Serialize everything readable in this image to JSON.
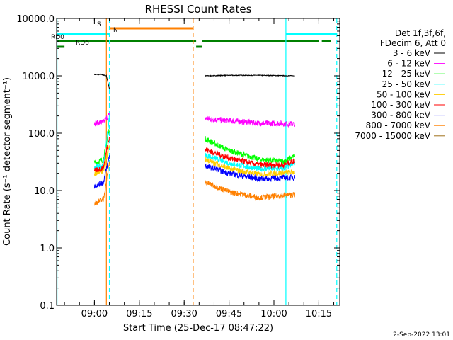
{
  "chart_data": {
    "type": "line",
    "title": "RHESSI Count Rates",
    "xlabel": "Start Time (25-Dec-17 08:47:22)",
    "ylabel": "Count Rate (s⁻¹ detector segment⁻¹)",
    "y_scale": "log",
    "ylim": [
      0.1,
      10000
    ],
    "xlim": [
      "08:47:22",
      "10:22:00"
    ],
    "x_ticks": [
      "09:00",
      "09:15",
      "09:30",
      "09:45",
      "10:00",
      "10:15"
    ],
    "y_ticks": [
      "0.1",
      "1.0",
      "10.0",
      "100.0",
      "1000.0",
      "10000.0"
    ],
    "legend_header": [
      "Det 1f,3f,6f,",
      "FDecim 6, Att 0"
    ],
    "series": [
      {
        "name": "3 - 6 keV",
        "color": "#000000",
        "segments": [
          {
            "x": [
              "09:00",
              "09:02",
              "09:04",
              "09:05"
            ],
            "y": [
              1050,
              1060,
              1000,
              600
            ]
          },
          {
            "x": [
              "09:37",
              "09:45",
              "09:55",
              "10:07"
            ],
            "y": [
              1000,
              1020,
              1020,
              1000
            ]
          }
        ]
      },
      {
        "name": "6 - 12 keV",
        "color": "#ff00ff",
        "segments": [
          {
            "x": [
              "09:00",
              "09:03",
              "09:05"
            ],
            "y": [
              150,
              155,
              210
            ]
          },
          {
            "x": [
              "09:37",
              "09:45",
              "09:55",
              "10:07"
            ],
            "y": [
              180,
              165,
              150,
              145
            ]
          }
        ]
      },
      {
        "name": "12 - 25 keV",
        "color": "#00ff00",
        "segments": [
          {
            "x": [
              "09:00",
              "09:03",
              "09:05"
            ],
            "y": [
              30,
              35,
              120
            ]
          },
          {
            "x": [
              "09:37",
              "09:45",
              "09:55",
              "10:03",
              "10:07"
            ],
            "y": [
              80,
              50,
              35,
              32,
              40
            ]
          }
        ]
      },
      {
        "name": "25 - 50 keV",
        "color": "#00ffff",
        "segments": [
          {
            "x": [
              "09:00",
              "09:03",
              "09:05"
            ],
            "y": [
              25,
              28,
              190
            ]
          },
          {
            "x": [
              "09:37",
              "09:45",
              "09:55",
              "10:03",
              "10:07"
            ],
            "y": [
              42,
              30,
              24,
              24,
              30
            ]
          }
        ]
      },
      {
        "name": "50 - 100 keV",
        "color": "#ffcc00",
        "segments": [
          {
            "x": [
              "09:00",
              "09:03",
              "09:05"
            ],
            "y": [
              20,
              22,
              60
            ]
          },
          {
            "x": [
              "09:37",
              "09:45",
              "09:55",
              "10:07"
            ],
            "y": [
              35,
              24,
              19,
              21
            ]
          }
        ]
      },
      {
        "name": "100 - 300 keV",
        "color": "#ff0000",
        "segments": [
          {
            "x": [
              "09:00",
              "09:03",
              "09:05"
            ],
            "y": [
              22,
              25,
              90
            ]
          },
          {
            "x": [
              "09:37",
              "09:45",
              "09:55",
              "10:03",
              "10:07"
            ],
            "y": [
              52,
              37,
              28,
              28,
              33
            ]
          }
        ]
      },
      {
        "name": "300 - 800 keV",
        "color": "#0000ff",
        "segments": [
          {
            "x": [
              "09:00",
              "09:03",
              "09:05"
            ],
            "y": [
              12,
              14,
              40
            ]
          },
          {
            "x": [
              "09:37",
              "09:45",
              "09:55",
              "10:07"
            ],
            "y": [
              27,
              20,
              16,
              17
            ]
          }
        ]
      },
      {
        "name": "800 - 7000 keV",
        "color": "#ff8000",
        "segments": [
          {
            "x": [
              "09:00",
              "09:03",
              "09:05"
            ],
            "y": [
              6,
              7,
              30
            ]
          },
          {
            "x": [
              "09:37",
              "09:45",
              "09:55",
              "10:07"
            ],
            "y": [
              14,
              9.5,
              7.5,
              8.5
            ]
          }
        ]
      },
      {
        "name": "7000 - 15000 keV",
        "color": "#a0701a",
        "segments": []
      }
    ],
    "flag_bars": [
      {
        "label": "S",
        "color": "#ff8000",
        "segments": [
          [
            "09:05",
            "09:33"
          ]
        ]
      },
      {
        "label": "N",
        "color": "#00ffff",
        "segments": [
          [
            "08:47:22",
            "09:05"
          ],
          [
            "10:04",
            "10:21"
          ]
        ]
      },
      {
        "label": "RD0",
        "color": "#008000",
        "segments": [
          [
            "08:47:22",
            "09:34"
          ],
          [
            "09:36",
            "10:15"
          ],
          [
            "10:16",
            "10:19"
          ]
        ]
      },
      {
        "label": "RD6",
        "color": "#008000",
        "segments": [
          [
            "08:47:22",
            "08:50"
          ],
          [
            "09:34",
            "09:36"
          ]
        ]
      }
    ],
    "vertical_lines": [
      {
        "time": "08:47:30",
        "color": "#00ffff",
        "style": "solid"
      },
      {
        "time": "09:04",
        "color": "#ff8000",
        "style": "solid"
      },
      {
        "time": "09:05",
        "color": "#00ffff",
        "style": "dashed"
      },
      {
        "time": "09:33",
        "color": "#ff8000",
        "style": "dashed"
      },
      {
        "time": "10:04",
        "color": "#00ffff",
        "style": "solid"
      },
      {
        "time": "10:21",
        "color": "#00ffff",
        "style": "dashed"
      }
    ],
    "footer": "2-Sep-2022 13:01"
  }
}
